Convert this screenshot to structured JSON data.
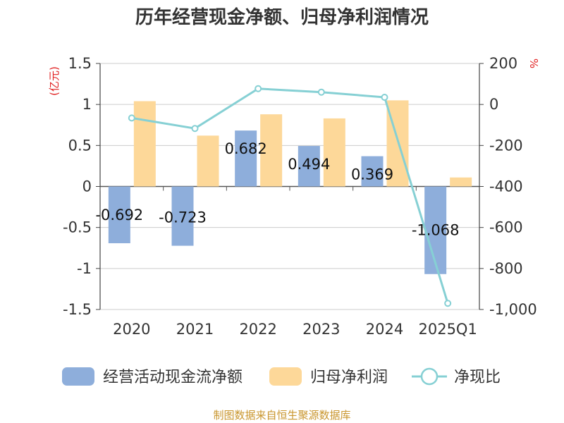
{
  "chart_data": {
    "type": "bar",
    "title": "历年经营现金净额、归母净利润情况",
    "categories": [
      "2020",
      "2021",
      "2022",
      "2023",
      "2024",
      "2025Q1"
    ],
    "series": [
      {
        "name": "经营活动现金流净额",
        "type": "bar",
        "axis": "left",
        "color": "#8eaedb",
        "values": [
          -0.692,
          -0.723,
          0.682,
          0.494,
          0.369,
          -1.068
        ],
        "labels": [
          "-0.692",
          "-0.723",
          "0.682",
          "0.494",
          "0.369",
          "-1.068"
        ]
      },
      {
        "name": "归母净利润",
        "type": "bar",
        "axis": "left",
        "color": "#fdd899",
        "values": [
          1.04,
          0.62,
          0.88,
          0.83,
          1.05,
          0.11
        ]
      },
      {
        "name": "净现比",
        "type": "line",
        "axis": "right",
        "color": "#86d0d4",
        "values": [
          -66,
          -117,
          77,
          60,
          35,
          -970
        ]
      }
    ],
    "y_left": {
      "label": "(亿元)",
      "ylim": [
        -1.5,
        1.5
      ],
      "ticks": [
        1.5,
        1,
        0.5,
        0,
        -0.5,
        -1,
        -1.5
      ],
      "tick_labels": [
        "1.5",
        "1",
        "0.5",
        "0",
        "-0.5",
        "-1",
        "-1.5"
      ]
    },
    "y_right": {
      "label": "%",
      "ylim": [
        -1000,
        200
      ],
      "ticks": [
        200,
        0,
        -200,
        -400,
        -600,
        -800,
        -1000
      ],
      "tick_labels": [
        "200",
        "0",
        "-200",
        "-400",
        "-600",
        "-800",
        "-1,000"
      ]
    },
    "grid": true,
    "legend_position": "bottom",
    "source": "制图数据来自恒生聚源数据库"
  }
}
